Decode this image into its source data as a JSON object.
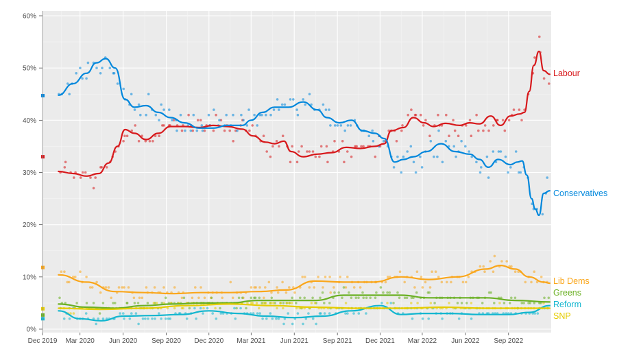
{
  "chart_data": {
    "type": "line",
    "title": "",
    "xlabel": "",
    "ylabel": "",
    "ylim": [
      0,
      60
    ],
    "y_ticks": [
      0,
      10,
      20,
      30,
      40,
      50,
      60
    ],
    "y_tick_labels": [
      "0%",
      "10%",
      "20%",
      "30%",
      "40%",
      "50%",
      "60%"
    ],
    "x_tick_labels": [
      "Dec 2019",
      "Mar 2020",
      "Jun 2020",
      "Sep 2020",
      "Dec 2020",
      "Mar 2021",
      "Jun 2021",
      "Sep 2021",
      "Dec 2021",
      "Mar 2022",
      "Jun 2022",
      "Sep 2022"
    ],
    "x_ticks": [
      "2019-12-12",
      "2020-03-01",
      "2020-06-01",
      "2020-09-01",
      "2020-12-01",
      "2021-03-01",
      "2021-06-01",
      "2021-09-01",
      "2021-12-01",
      "2022-03-01",
      "2022-06-01",
      "2022-09-01"
    ],
    "xlim": [
      "2019-12-12",
      "2022-12-01"
    ],
    "grid": true,
    "legend_placement": "right",
    "election_result_markers": [
      {
        "party": "Conservatives",
        "value": 44.7
      },
      {
        "party": "Labour",
        "value": 33.0
      },
      {
        "party": "Lib Dems",
        "value": 11.8
      },
      {
        "party": "SNP",
        "value": 3.9
      },
      {
        "party": "Greens",
        "value": 2.7
      },
      {
        "party": "Reform",
        "value": 2.0
      }
    ],
    "series": [
      {
        "name": "Labour",
        "color": "#d7191c",
        "x": [
          "2020-01-15",
          "2020-02-15",
          "2020-03-15",
          "2020-04-10",
          "2020-05-01",
          "2020-05-20",
          "2020-06-05",
          "2020-06-25",
          "2020-07-20",
          "2020-08-15",
          "2020-09-10",
          "2020-10-10",
          "2020-11-10",
          "2020-12-10",
          "2021-01-10",
          "2021-02-10",
          "2021-03-05",
          "2021-04-01",
          "2021-04-20",
          "2021-05-10",
          "2021-05-25",
          "2021-06-20",
          "2021-07-20",
          "2021-08-20",
          "2021-09-20",
          "2021-10-20",
          "2021-11-20",
          "2021-12-10",
          "2021-12-25",
          "2022-01-20",
          "2022-02-10",
          "2022-03-05",
          "2022-03-25",
          "2022-04-20",
          "2022-05-20",
          "2022-06-10",
          "2022-07-01",
          "2022-07-25",
          "2022-08-15",
          "2022-09-05",
          "2022-09-25",
          "2022-10-05",
          "2022-10-15",
          "2022-10-25",
          "2022-11-05",
          "2022-11-15",
          "2022-11-28"
        ],
        "values": [
          30.2,
          29.8,
          29.3,
          29.8,
          31.8,
          35.0,
          38.2,
          37.5,
          36.3,
          37.5,
          38.8,
          38.8,
          38.6,
          39.0,
          38.8,
          38.3,
          37.0,
          35.8,
          35.5,
          36.0,
          34.0,
          33.0,
          33.5,
          33.8,
          34.8,
          34.6,
          35.0,
          35.5,
          38.0,
          38.6,
          40.5,
          39.5,
          38.8,
          39.4,
          39.0,
          39.5,
          39.3,
          40.8,
          39.0,
          40.8,
          41.2,
          41.5,
          45.5,
          50.5,
          53.2,
          49.5,
          48.8
        ]
      },
      {
        "name": "Conservatives",
        "color": "#0087dc",
        "x": [
          "2020-01-15",
          "2020-02-15",
          "2020-03-15",
          "2020-04-05",
          "2020-04-25",
          "2020-05-15",
          "2020-06-05",
          "2020-06-25",
          "2020-07-20",
          "2020-08-15",
          "2020-09-10",
          "2020-10-10",
          "2020-11-10",
          "2020-12-10",
          "2021-01-10",
          "2021-02-10",
          "2021-03-01",
          "2021-03-25",
          "2021-04-20",
          "2021-05-20",
          "2021-06-20",
          "2021-07-20",
          "2021-08-10",
          "2021-09-05",
          "2021-10-01",
          "2021-10-25",
          "2021-11-20",
          "2021-12-10",
          "2022-01-01",
          "2022-01-20",
          "2022-02-10",
          "2022-03-10",
          "2022-04-10",
          "2022-05-10",
          "2022-06-10",
          "2022-07-01",
          "2022-07-20",
          "2022-08-10",
          "2022-09-05",
          "2022-09-20",
          "2022-09-30",
          "2022-10-10",
          "2022-10-20",
          "2022-10-28",
          "2022-11-05",
          "2022-11-15",
          "2022-11-28"
        ],
        "values": [
          44.8,
          47.0,
          49.0,
          51.0,
          51.8,
          50.0,
          44.0,
          42.5,
          42.8,
          41.5,
          40.5,
          39.5,
          38.5,
          38.5,
          39.0,
          39.0,
          40.0,
          41.5,
          42.5,
          42.5,
          43.5,
          42.0,
          40.5,
          39.5,
          40.0,
          38.0,
          37.5,
          36.5,
          32.0,
          32.5,
          33.0,
          34.0,
          35.5,
          34.0,
          33.5,
          32.5,
          31.0,
          32.5,
          31.5,
          32.0,
          32.2,
          29.5,
          25.0,
          23.0,
          21.8,
          26.0,
          26.5
        ]
      },
      {
        "name": "Lib Dems",
        "color": "#faa61a",
        "x": [
          "2020-01-15",
          "2020-03-15",
          "2020-05-15",
          "2020-07-15",
          "2020-09-15",
          "2020-11-15",
          "2021-01-15",
          "2021-03-15",
          "2021-05-15",
          "2021-07-15",
          "2021-09-15",
          "2021-11-15",
          "2022-01-15",
          "2022-03-15",
          "2022-05-15",
          "2022-07-15",
          "2022-08-15",
          "2022-09-15",
          "2022-10-15",
          "2022-11-15",
          "2022-11-28"
        ],
        "values": [
          10.4,
          9.0,
          7.2,
          7.0,
          6.8,
          7.0,
          7.0,
          7.2,
          7.5,
          9.2,
          9.0,
          9.0,
          10.0,
          9.5,
          10.0,
          11.5,
          12.2,
          11.5,
          10.0,
          9.0,
          8.8
        ]
      },
      {
        "name": "Greens",
        "color": "#6ab023",
        "x": [
          "2020-01-15",
          "2020-03-15",
          "2020-05-15",
          "2020-07-15",
          "2020-09-15",
          "2020-11-15",
          "2021-01-15",
          "2021-03-15",
          "2021-05-15",
          "2021-07-15",
          "2021-09-15",
          "2021-11-15",
          "2022-01-15",
          "2022-03-15",
          "2022-05-15",
          "2022-07-15",
          "2022-09-15",
          "2022-11-28"
        ],
        "values": [
          4.8,
          4.2,
          4.0,
          4.5,
          4.8,
          5.0,
          5.0,
          5.5,
          5.5,
          5.5,
          6.5,
          6.5,
          6.5,
          6.0,
          6.0,
          6.0,
          5.5,
          5.2
        ]
      },
      {
        "name": "Reform",
        "color": "#12b6cf",
        "x": [
          "2020-01-15",
          "2020-03-01",
          "2020-04-15",
          "2020-06-01",
          "2020-08-01",
          "2020-10-01",
          "2020-12-01",
          "2021-02-01",
          "2021-04-01",
          "2021-06-01",
          "2021-08-01",
          "2021-10-01",
          "2021-12-01",
          "2022-01-15",
          "2022-03-01",
          "2022-05-01",
          "2022-07-01",
          "2022-09-01",
          "2022-10-15",
          "2022-11-28"
        ],
        "values": [
          3.5,
          2.0,
          1.6,
          2.5,
          2.6,
          2.8,
          3.5,
          3.0,
          2.5,
          2.2,
          2.5,
          3.5,
          4.5,
          2.8,
          3.0,
          3.0,
          2.8,
          2.8,
          3.2,
          4.5
        ]
      },
      {
        "name": "SNP",
        "color": "#e5cc00",
        "x": [
          "2020-01-15",
          "2020-04-15",
          "2020-07-15",
          "2020-10-15",
          "2021-01-15",
          "2021-04-15",
          "2021-07-15",
          "2021-10-15",
          "2022-01-15",
          "2022-04-15",
          "2022-07-15",
          "2022-10-15",
          "2022-11-28"
        ],
        "values": [
          4.0,
          3.8,
          4.0,
          4.5,
          4.8,
          4.5,
          4.2,
          4.0,
          4.0,
          4.2,
          4.0,
          4.0,
          4.0
        ]
      }
    ],
    "legend_labels": [
      "Labour",
      "Conservatives",
      "Lib Dems",
      "Greens",
      "Reform",
      "SNP"
    ]
  }
}
